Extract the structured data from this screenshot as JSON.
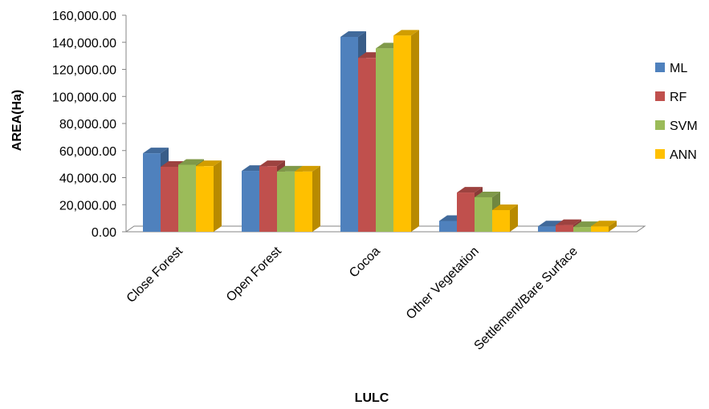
{
  "chart_data": {
    "type": "bar",
    "style": "3d-clustered-column",
    "categories": [
      "Close Forest",
      "Open Forest",
      "Cocoa",
      "Other Vegetation",
      "Settlement/Bare Surface"
    ],
    "series": [
      {
        "name": "ML",
        "color": "#4f81bd",
        "values": [
          58000,
          45000,
          144000,
          8000,
          4000
        ]
      },
      {
        "name": "RF",
        "color": "#c0504d",
        "values": [
          48000,
          48500,
          128500,
          29000,
          5000
        ]
      },
      {
        "name": "SVM",
        "color": "#9bbb59",
        "values": [
          49500,
          44500,
          135500,
          25500,
          3500
        ]
      },
      {
        "name": "ANN",
        "color": "#ffc000",
        "values": [
          48500,
          44500,
          145000,
          16000,
          4000
        ]
      }
    ],
    "ylim": [
      0,
      160000
    ],
    "yticks": [
      "0.00",
      "20,000.00",
      "40,000.00",
      "60,000.00",
      "80,000.00",
      "100,000.00",
      "120,000.00",
      "140,000.00",
      "160,000.00"
    ],
    "xlabel": "LULC",
    "ylabel": "AREA(Ha)",
    "legend_position": "right",
    "grid": false
  }
}
